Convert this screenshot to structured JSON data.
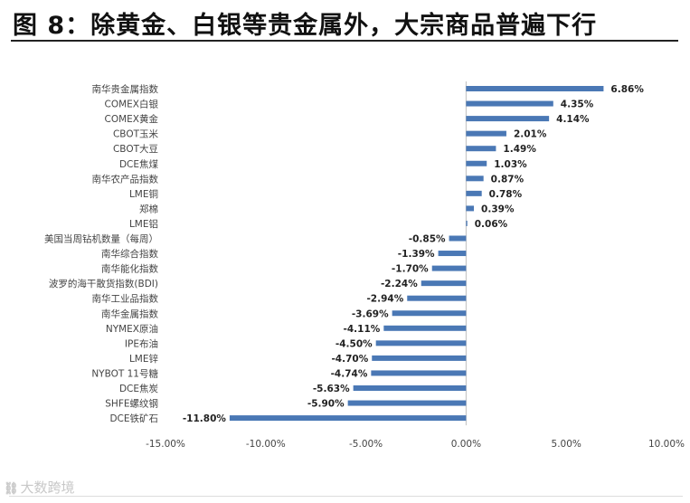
{
  "chart_data": {
    "type": "bar",
    "orientation": "horizontal",
    "title": "图 8：除黄金、白银等贵金属外，大宗商品普遍下行",
    "categories": [
      "南华贵金属指数",
      "COMEX白银",
      "COMEX黄金",
      "CBOT玉米",
      "CBOT大豆",
      "DCE焦煤",
      "南华农产品指数",
      "LME铜",
      "郑棉",
      "LME铝",
      "美国当周钻机数量（每周）",
      "南华综合指数",
      "南华能化指数",
      "波罗的海干散货指数(BDI)",
      "南华工业品指数",
      "南华金属指数",
      "NYMEX原油",
      "IPE布油",
      "LME锌",
      "NYBOT 11号糖",
      "DCE焦炭",
      "SHFE螺纹钢",
      "DCE铁矿石"
    ],
    "values": [
      6.86,
      4.35,
      4.14,
      2.01,
      1.49,
      1.03,
      0.87,
      0.78,
      0.39,
      0.06,
      -0.85,
      -1.39,
      -1.7,
      -2.24,
      -2.94,
      -3.69,
      -4.11,
      -4.5,
      -4.7,
      -4.74,
      -5.63,
      -5.9,
      -11.8
    ],
    "value_labels": [
      "6.86%",
      "4.35%",
      "4.14%",
      "2.01%",
      "1.49%",
      "1.03%",
      "0.87%",
      "0.78%",
      "0.39%",
      "0.06%",
      "-0.85%",
      "-1.39%",
      "-1.70%",
      "-2.24%",
      "-2.94%",
      "-3.69%",
      "-4.11%",
      "-4.50%",
      "-4.70%",
      "-4.74%",
      "-5.63%",
      "-5.90%",
      "-11.80%"
    ],
    "xlim": [
      -15,
      10
    ],
    "xticks": [
      -15,
      -10,
      -5,
      0,
      5,
      10
    ],
    "xtick_labels": [
      "-15.00%",
      "-10.00%",
      "-5.00%",
      "0.00%",
      "5.00%",
      "10.00%"
    ],
    "xlabel": "",
    "ylabel": "",
    "grid": false,
    "legend": "none",
    "bar_color": "#4a78b5"
  },
  "watermark": {
    "icon": "chain-link-icon",
    "text": "大数跨境"
  }
}
